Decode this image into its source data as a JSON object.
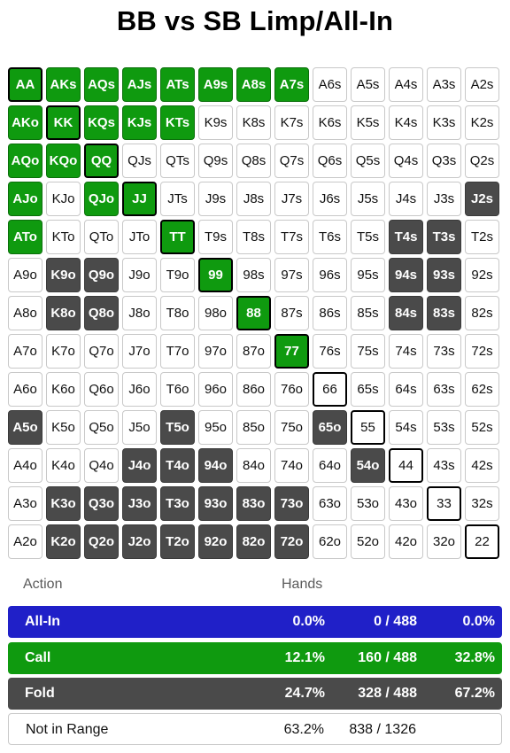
{
  "title": "BB vs SB Limp/All-In",
  "grid": [
    [
      [
        "AA",
        "call"
      ],
      [
        "AKs",
        "call"
      ],
      [
        "AQs",
        "call"
      ],
      [
        "AJs",
        "call"
      ],
      [
        "ATs",
        "call"
      ],
      [
        "A9s",
        "call"
      ],
      [
        "A8s",
        "call"
      ],
      [
        "A7s",
        "call"
      ],
      [
        "A6s",
        ""
      ],
      [
        "A5s",
        ""
      ],
      [
        "A4s",
        ""
      ],
      [
        "A3s",
        ""
      ],
      [
        "A2s",
        ""
      ]
    ],
    [
      [
        "AKo",
        "call"
      ],
      [
        "KK",
        "call"
      ],
      [
        "KQs",
        "call"
      ],
      [
        "KJs",
        "call"
      ],
      [
        "KTs",
        "call"
      ],
      [
        "K9s",
        ""
      ],
      [
        "K8s",
        ""
      ],
      [
        "K7s",
        ""
      ],
      [
        "K6s",
        ""
      ],
      [
        "K5s",
        ""
      ],
      [
        "K4s",
        ""
      ],
      [
        "K3s",
        ""
      ],
      [
        "K2s",
        ""
      ]
    ],
    [
      [
        "AQo",
        "call"
      ],
      [
        "KQo",
        "call"
      ],
      [
        "QQ",
        "call"
      ],
      [
        "QJs",
        ""
      ],
      [
        "QTs",
        ""
      ],
      [
        "Q9s",
        ""
      ],
      [
        "Q8s",
        ""
      ],
      [
        "Q7s",
        ""
      ],
      [
        "Q6s",
        ""
      ],
      [
        "Q5s",
        ""
      ],
      [
        "Q4s",
        ""
      ],
      [
        "Q3s",
        ""
      ],
      [
        "Q2s",
        ""
      ]
    ],
    [
      [
        "AJo",
        "call"
      ],
      [
        "KJo",
        ""
      ],
      [
        "QJo",
        "call"
      ],
      [
        "JJ",
        "call"
      ],
      [
        "JTs",
        ""
      ],
      [
        "J9s",
        ""
      ],
      [
        "J8s",
        ""
      ],
      [
        "J7s",
        ""
      ],
      [
        "J6s",
        ""
      ],
      [
        "J5s",
        ""
      ],
      [
        "J4s",
        ""
      ],
      [
        "J3s",
        ""
      ],
      [
        "J2s",
        "fold"
      ]
    ],
    [
      [
        "ATo",
        "call"
      ],
      [
        "KTo",
        ""
      ],
      [
        "QTo",
        ""
      ],
      [
        "JTo",
        ""
      ],
      [
        "TT",
        "call"
      ],
      [
        "T9s",
        ""
      ],
      [
        "T8s",
        ""
      ],
      [
        "T7s",
        ""
      ],
      [
        "T6s",
        ""
      ],
      [
        "T5s",
        ""
      ],
      [
        "T4s",
        "fold"
      ],
      [
        "T3s",
        "fold"
      ],
      [
        "T2s",
        ""
      ]
    ],
    [
      [
        "A9o",
        ""
      ],
      [
        "K9o",
        "fold"
      ],
      [
        "Q9o",
        "fold"
      ],
      [
        "J9o",
        ""
      ],
      [
        "T9o",
        ""
      ],
      [
        "99",
        "call"
      ],
      [
        "98s",
        ""
      ],
      [
        "97s",
        ""
      ],
      [
        "96s",
        ""
      ],
      [
        "95s",
        ""
      ],
      [
        "94s",
        "fold"
      ],
      [
        "93s",
        "fold"
      ],
      [
        "92s",
        ""
      ]
    ],
    [
      [
        "A8o",
        ""
      ],
      [
        "K8o",
        "fold"
      ],
      [
        "Q8o",
        "fold"
      ],
      [
        "J8o",
        ""
      ],
      [
        "T8o",
        ""
      ],
      [
        "98o",
        ""
      ],
      [
        "88",
        "call"
      ],
      [
        "87s",
        ""
      ],
      [
        "86s",
        ""
      ],
      [
        "85s",
        ""
      ],
      [
        "84s",
        "fold"
      ],
      [
        "83s",
        "fold"
      ],
      [
        "82s",
        ""
      ]
    ],
    [
      [
        "A7o",
        ""
      ],
      [
        "K7o",
        ""
      ],
      [
        "Q7o",
        ""
      ],
      [
        "J7o",
        ""
      ],
      [
        "T7o",
        ""
      ],
      [
        "97o",
        ""
      ],
      [
        "87o",
        ""
      ],
      [
        "77",
        "call"
      ],
      [
        "76s",
        ""
      ],
      [
        "75s",
        ""
      ],
      [
        "74s",
        ""
      ],
      [
        "73s",
        ""
      ],
      [
        "72s",
        ""
      ]
    ],
    [
      [
        "A6o",
        ""
      ],
      [
        "K6o",
        ""
      ],
      [
        "Q6o",
        ""
      ],
      [
        "J6o",
        ""
      ],
      [
        "T6o",
        ""
      ],
      [
        "96o",
        ""
      ],
      [
        "86o",
        ""
      ],
      [
        "76o",
        ""
      ],
      [
        "66",
        ""
      ],
      [
        "65s",
        ""
      ],
      [
        "64s",
        ""
      ],
      [
        "63s",
        ""
      ],
      [
        "62s",
        ""
      ]
    ],
    [
      [
        "A5o",
        "fold"
      ],
      [
        "K5o",
        ""
      ],
      [
        "Q5o",
        ""
      ],
      [
        "J5o",
        ""
      ],
      [
        "T5o",
        "fold"
      ],
      [
        "95o",
        ""
      ],
      [
        "85o",
        ""
      ],
      [
        "75o",
        ""
      ],
      [
        "65o",
        "fold"
      ],
      [
        "55",
        ""
      ],
      [
        "54s",
        ""
      ],
      [
        "53s",
        ""
      ],
      [
        "52s",
        ""
      ]
    ],
    [
      [
        "A4o",
        ""
      ],
      [
        "K4o",
        ""
      ],
      [
        "Q4o",
        ""
      ],
      [
        "J4o",
        "fold"
      ],
      [
        "T4o",
        "fold"
      ],
      [
        "94o",
        "fold"
      ],
      [
        "84o",
        ""
      ],
      [
        "74o",
        ""
      ],
      [
        "64o",
        ""
      ],
      [
        "54o",
        "fold"
      ],
      [
        "44",
        ""
      ],
      [
        "43s",
        ""
      ],
      [
        "42s",
        ""
      ]
    ],
    [
      [
        "A3o",
        ""
      ],
      [
        "K3o",
        "fold"
      ],
      [
        "Q3o",
        "fold"
      ],
      [
        "J3o",
        "fold"
      ],
      [
        "T3o",
        "fold"
      ],
      [
        "93o",
        "fold"
      ],
      [
        "83o",
        "fold"
      ],
      [
        "73o",
        "fold"
      ],
      [
        "63o",
        ""
      ],
      [
        "53o",
        ""
      ],
      [
        "43o",
        ""
      ],
      [
        "33",
        ""
      ],
      [
        "32s",
        ""
      ]
    ],
    [
      [
        "A2o",
        ""
      ],
      [
        "K2o",
        "fold"
      ],
      [
        "Q2o",
        "fold"
      ],
      [
        "J2o",
        "fold"
      ],
      [
        "T2o",
        "fold"
      ],
      [
        "92o",
        "fold"
      ],
      [
        "82o",
        "fold"
      ],
      [
        "72o",
        "fold"
      ],
      [
        "62o",
        ""
      ],
      [
        "52o",
        ""
      ],
      [
        "42o",
        ""
      ],
      [
        "32o",
        ""
      ],
      [
        "22",
        ""
      ]
    ]
  ],
  "colors": {
    "call": "#0f9a0f",
    "fold": "#4a4a4a",
    "allin": "#2020c8"
  },
  "table": {
    "action_header": "Action",
    "hands_header": "Hands",
    "rows": [
      {
        "label": "All-In",
        "pct": "0.0%",
        "count": "0 / 488",
        "weight": "0.0%"
      },
      {
        "label": "Call",
        "pct": "12.1%",
        "count": "160 / 488",
        "weight": "32.8%"
      },
      {
        "label": "Fold",
        "pct": "24.7%",
        "count": "328 / 488",
        "weight": "67.2%"
      },
      {
        "label": "Not in Range",
        "pct": "63.2%",
        "count": "838 / 1326"
      }
    ]
  }
}
